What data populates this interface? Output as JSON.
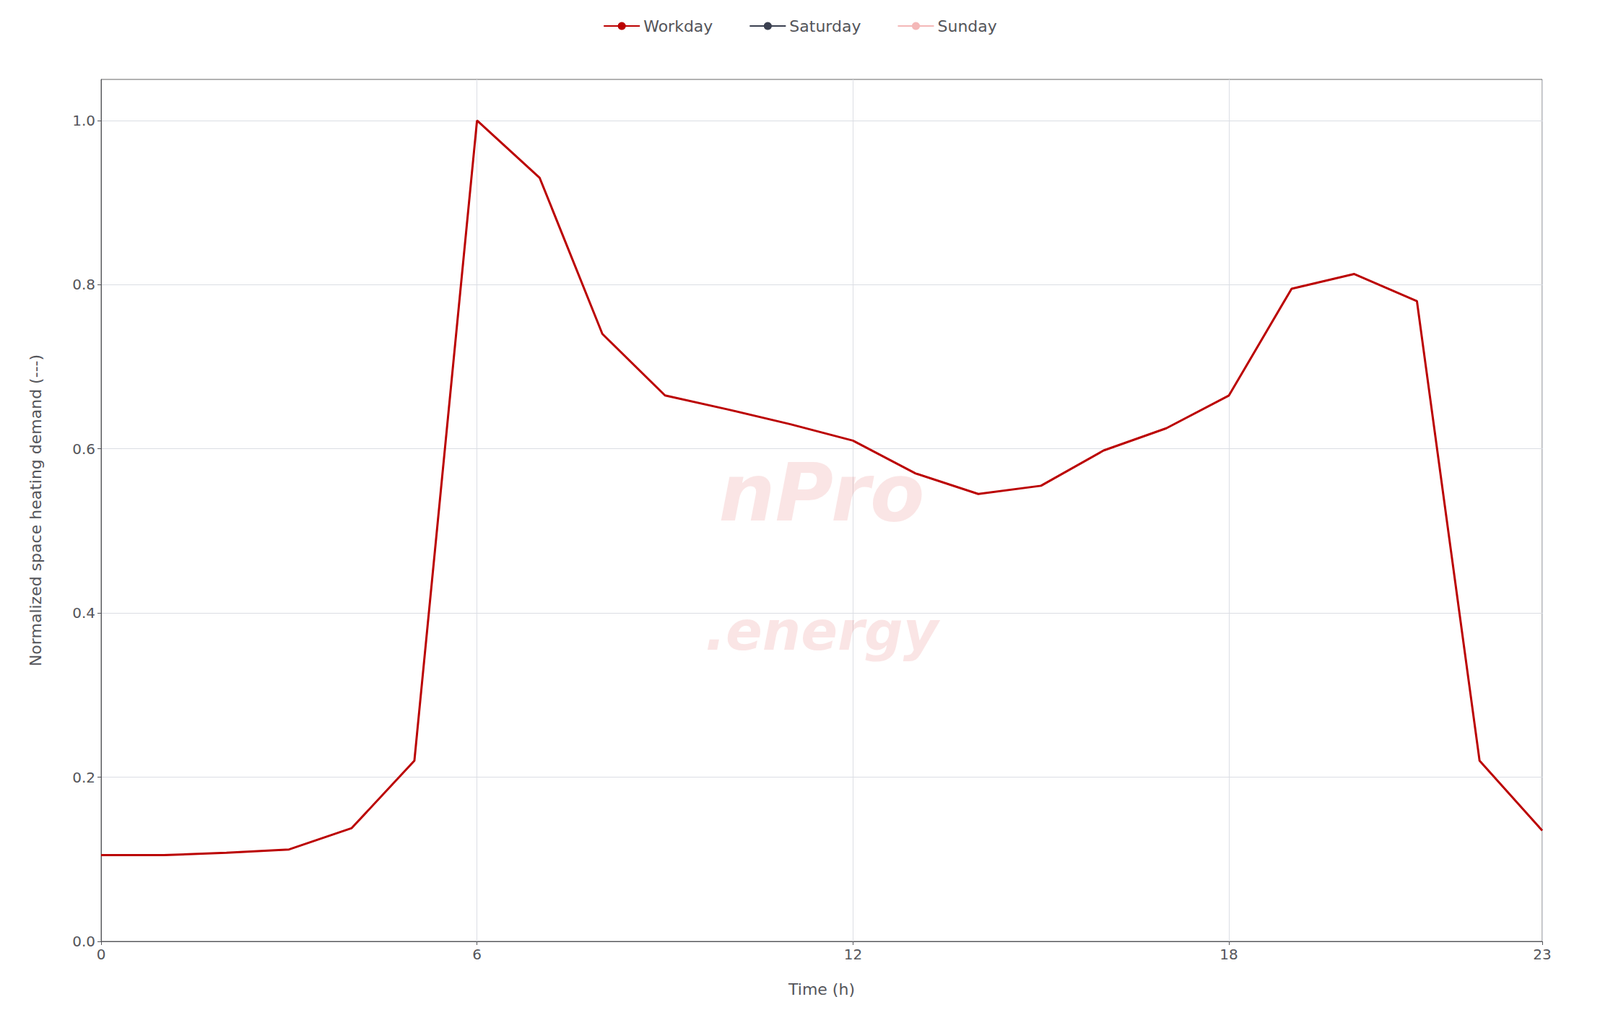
{
  "chart_data": {
    "type": "line",
    "x_label": "Time (h)",
    "y_label": "Normalized space heating demand (---)",
    "x": [
      0,
      1,
      2,
      3,
      4,
      5,
      6,
      7,
      8,
      9,
      10,
      11,
      12,
      13,
      14,
      15,
      16,
      17,
      18,
      19,
      20,
      21,
      22,
      23
    ],
    "series": [
      {
        "name": "Workday",
        "color": "#bb0000",
        "values": [
          0.105,
          0.105,
          0.108,
          0.112,
          0.138,
          0.22,
          1.0,
          0.93,
          0.74,
          0.665,
          0.648,
          0.63,
          0.61,
          0.57,
          0.545,
          0.555,
          0.598,
          0.625,
          0.665,
          0.795,
          0.813,
          0.78,
          0.22,
          0.135
        ]
      },
      {
        "name": "Saturday",
        "color": "#3a4050",
        "values": [
          null,
          null,
          null,
          null,
          null,
          null,
          null,
          null,
          null,
          null,
          null,
          null,
          null,
          null,
          null,
          null,
          null,
          null,
          null,
          null,
          null,
          null,
          null,
          null
        ]
      },
      {
        "name": "Sunday",
        "color": "#f4b8b8",
        "values": [
          null,
          null,
          null,
          null,
          null,
          null,
          null,
          null,
          null,
          null,
          null,
          null,
          null,
          null,
          null,
          null,
          null,
          null,
          null,
          null,
          null,
          null,
          null,
          null
        ]
      }
    ],
    "xlim": [
      0,
      23
    ],
    "xticks": [
      0,
      6,
      12,
      18,
      23
    ],
    "ylim": [
      0.0,
      1.05
    ],
    "yticks": [
      {
        "value": 0.0,
        "label": "0.0"
      },
      0.2,
      0.4,
      0.6,
      0.8,
      {
        "value": 1.0,
        "label": "1.0"
      }
    ],
    "grid": true,
    "legend": "top",
    "annotations": [
      {
        "text": "nPro",
        "color": "#cc0000"
      },
      {
        "text": ".energy",
        "color": "#cc0000"
      }
    ]
  }
}
